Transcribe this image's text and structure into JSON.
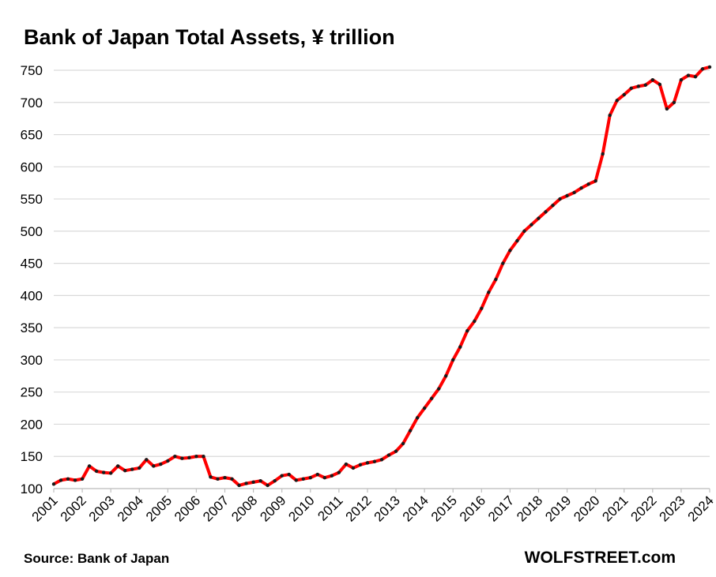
{
  "chart_data": {
    "type": "line",
    "title": "Bank of Japan Total Assets, ¥ trillion",
    "source": "Source: Bank of Japan",
    "brand": "WOLFSTREET.com",
    "x": [
      2001,
      2001.25,
      2001.5,
      2001.75,
      2002,
      2002.25,
      2002.5,
      2002.75,
      2003,
      2003.25,
      2003.5,
      2003.75,
      2004,
      2004.25,
      2004.5,
      2004.75,
      2005,
      2005.25,
      2005.5,
      2005.75,
      2006,
      2006.25,
      2006.5,
      2006.75,
      2007,
      2007.25,
      2007.5,
      2007.75,
      2008,
      2008.25,
      2008.5,
      2008.75,
      2009,
      2009.25,
      2009.5,
      2009.75,
      2010,
      2010.25,
      2010.5,
      2010.75,
      2011,
      2011.25,
      2011.5,
      2011.75,
      2012,
      2012.25,
      2012.5,
      2012.75,
      2013,
      2013.25,
      2013.5,
      2013.75,
      2014,
      2014.25,
      2014.5,
      2014.75,
      2015,
      2015.25,
      2015.5,
      2015.75,
      2016,
      2016.25,
      2016.5,
      2016.75,
      2017,
      2017.25,
      2017.5,
      2017.75,
      2018,
      2018.25,
      2018.5,
      2018.75,
      2019,
      2019.25,
      2019.5,
      2019.75,
      2020,
      2020.25,
      2020.5,
      2020.75,
      2021,
      2021.25,
      2021.5,
      2021.75,
      2022,
      2022.25,
      2022.5,
      2022.75,
      2023,
      2023.25,
      2023.5,
      2023.75,
      2024
    ],
    "series": [
      {
        "name": "Total Assets",
        "color": "#ff0000",
        "marker_color": "#1a1a1a",
        "values": [
          107,
          113,
          115,
          113,
          115,
          135,
          127,
          125,
          124,
          135,
          128,
          130,
          132,
          145,
          135,
          138,
          143,
          150,
          147,
          148,
          150,
          150,
          118,
          115,
          117,
          115,
          105,
          108,
          110,
          112,
          105,
          112,
          120,
          122,
          113,
          115,
          117,
          122,
          117,
          120,
          125,
          138,
          132,
          137,
          140,
          142,
          145,
          152,
          158,
          170,
          190,
          210,
          225,
          240,
          255,
          275,
          300,
          320,
          345,
          360,
          380,
          405,
          425,
          450,
          470,
          485,
          500,
          510,
          520,
          530,
          540,
          550,
          555,
          560,
          567,
          573,
          578,
          620,
          680,
          703,
          712,
          722,
          725,
          727,
          735,
          728,
          690,
          700,
          735,
          742,
          740,
          752,
          755
        ]
      }
    ],
    "xlim": [
      2001,
      2024
    ],
    "xticks": [
      2001,
      2002,
      2003,
      2004,
      2005,
      2006,
      2007,
      2008,
      2009,
      2010,
      2011,
      2012,
      2013,
      2014,
      2015,
      2016,
      2017,
      2018,
      2019,
      2020,
      2021,
      2022,
      2023,
      2024
    ],
    "ylim": [
      100,
      750
    ],
    "yticks": [
      100,
      150,
      200,
      250,
      300,
      350,
      400,
      450,
      500,
      550,
      600,
      650,
      700,
      750
    ],
    "grid": true
  }
}
